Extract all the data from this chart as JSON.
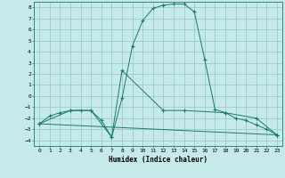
{
  "xlabel": "Humidex (Indice chaleur)",
  "ylabel": "",
  "xlim": [
    -0.5,
    23.5
  ],
  "ylim": [
    -4.5,
    8.5
  ],
  "xticks": [
    0,
    1,
    2,
    3,
    4,
    5,
    6,
    7,
    8,
    9,
    10,
    11,
    12,
    13,
    14,
    15,
    16,
    17,
    18,
    19,
    20,
    21,
    22,
    23
  ],
  "yticks": [
    -4,
    -3,
    -2,
    -1,
    0,
    1,
    2,
    3,
    4,
    5,
    6,
    7,
    8
  ],
  "bg_color": "#c6e9e9",
  "grid_color": "#93c5c5",
  "line_color": "#1a7a6e",
  "line1_x": [
    0,
    1,
    2,
    3,
    4,
    5,
    6,
    7,
    8,
    9,
    10,
    11,
    12,
    13,
    14,
    15,
    16,
    17,
    18,
    19,
    20,
    21,
    22,
    23
  ],
  "line1_y": [
    -2.5,
    -1.8,
    -1.5,
    -1.3,
    -1.3,
    -1.3,
    -2.2,
    -3.7,
    -0.2,
    4.5,
    6.8,
    7.9,
    8.2,
    8.3,
    8.3,
    7.6,
    3.3,
    -1.2,
    -1.5,
    -2.0,
    -2.2,
    -2.6,
    -3.0,
    -3.5
  ],
  "line2_x": [
    0,
    3,
    5,
    7,
    8,
    12,
    14,
    18,
    21,
    23
  ],
  "line2_y": [
    -2.5,
    -1.3,
    -1.3,
    -3.7,
    2.3,
    -1.3,
    -1.3,
    -1.5,
    -2.0,
    -3.5
  ],
  "line3_x": [
    0,
    23
  ],
  "line3_y": [
    -2.5,
    -3.5
  ]
}
